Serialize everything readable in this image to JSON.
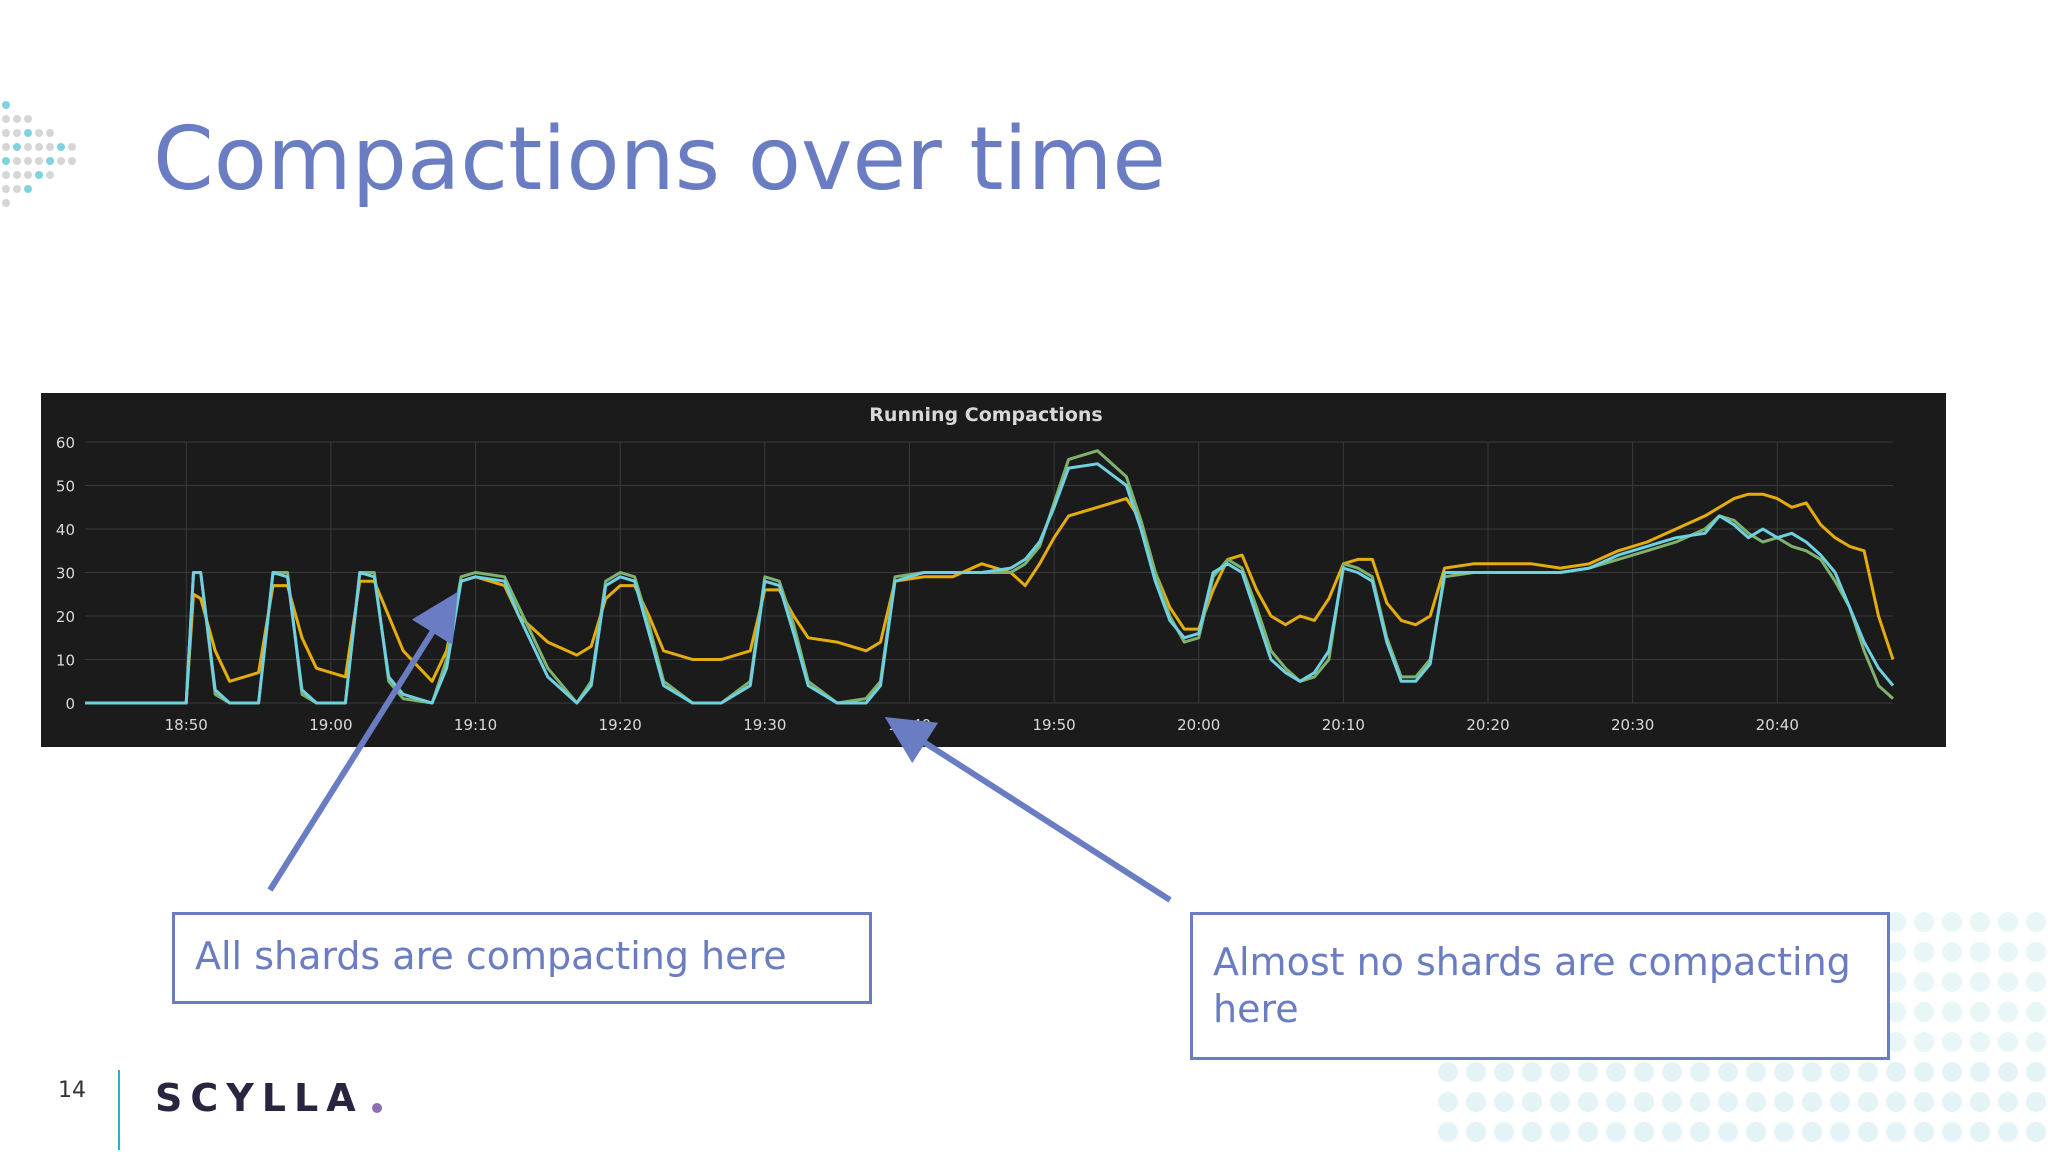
{
  "slide": {
    "title": "Compactions over time",
    "page_number": "14",
    "logo_text": "SCYLLA",
    "callouts": {
      "left": "All shards are compacting here",
      "right": "Almost no shards are compacting here"
    }
  },
  "colors": {
    "title": "#6b7dc2",
    "panel_bg": "#1b1b1c",
    "series_yellow": "#e5ac0e",
    "series_green": "#7eb26d",
    "series_cyan": "#6ed0e0",
    "accent_teal": "#2ab0c8"
  },
  "chart_data": {
    "type": "line",
    "title": "Running Compactions",
    "xlabel": "",
    "ylabel": "",
    "ylim": [
      0,
      60
    ],
    "yticks": [
      0,
      10,
      20,
      30,
      40,
      50,
      60
    ],
    "xticks": [
      "18:50",
      "19:00",
      "19:10",
      "19:20",
      "19:30",
      "19:40",
      "19:50",
      "20:00",
      "20:10",
      "20:20",
      "20:30",
      "20:40"
    ],
    "x_range": [
      "18:43",
      "20:48"
    ],
    "grid": true,
    "legend": "none",
    "series": [
      {
        "color": "#e5ac0e",
        "points": [
          [
            "18:43",
            0
          ],
          [
            "18:50",
            0
          ],
          [
            "18:50:30",
            25
          ],
          [
            "18:51",
            24
          ],
          [
            "18:52",
            12
          ],
          [
            "18:53",
            5
          ],
          [
            "18:55",
            7
          ],
          [
            "18:56",
            27
          ],
          [
            "18:57",
            27
          ],
          [
            "18:58",
            15
          ],
          [
            "18:59",
            8
          ],
          [
            "19:01",
            6
          ],
          [
            "19:02",
            28
          ],
          [
            "19:03",
            28
          ],
          [
            "19:04",
            20
          ],
          [
            "19:05",
            12
          ],
          [
            "19:07",
            5
          ],
          [
            "19:08",
            12
          ],
          [
            "19:09",
            28
          ],
          [
            "19:10",
            29
          ],
          [
            "19:12",
            27
          ],
          [
            "19:13",
            20
          ],
          [
            "19:15",
            14
          ],
          [
            "19:17",
            11
          ],
          [
            "19:18",
            13
          ],
          [
            "19:19",
            24
          ],
          [
            "19:20",
            27
          ],
          [
            "19:21",
            27
          ],
          [
            "19:22",
            20
          ],
          [
            "19:23",
            12
          ],
          [
            "19:25",
            10
          ],
          [
            "19:27",
            10
          ],
          [
            "19:29",
            12
          ],
          [
            "19:30",
            26
          ],
          [
            "19:31",
            26
          ],
          [
            "19:32",
            20
          ],
          [
            "19:33",
            15
          ],
          [
            "19:35",
            14
          ],
          [
            "19:37",
            12
          ],
          [
            "19:38",
            14
          ],
          [
            "19:39",
            28
          ],
          [
            "19:41",
            29
          ],
          [
            "19:43",
            29
          ],
          [
            "19:45",
            32
          ],
          [
            "19:47",
            30
          ],
          [
            "19:48",
            27
          ],
          [
            "19:49",
            32
          ],
          [
            "19:50",
            38
          ],
          [
            "19:51",
            43
          ],
          [
            "19:53",
            45
          ],
          [
            "19:55",
            47
          ],
          [
            "19:56",
            42
          ],
          [
            "19:57",
            30
          ],
          [
            "19:58",
            22
          ],
          [
            "19:59",
            17
          ],
          [
            "20:00",
            17
          ],
          [
            "20:01",
            26
          ],
          [
            "20:02",
            33
          ],
          [
            "20:03",
            34
          ],
          [
            "20:04",
            26
          ],
          [
            "20:05",
            20
          ],
          [
            "20:06",
            18
          ],
          [
            "20:07",
            20
          ],
          [
            "20:08",
            19
          ],
          [
            "20:09",
            24
          ],
          [
            "20:10",
            32
          ],
          [
            "20:11",
            33
          ],
          [
            "20:12",
            33
          ],
          [
            "20:13",
            23
          ],
          [
            "20:14",
            19
          ],
          [
            "20:15",
            18
          ],
          [
            "20:16",
            20
          ],
          [
            "20:17",
            31
          ],
          [
            "20:19",
            32
          ],
          [
            "20:21",
            32
          ],
          [
            "20:23",
            32
          ],
          [
            "20:25",
            31
          ],
          [
            "20:27",
            32
          ],
          [
            "20:29",
            35
          ],
          [
            "20:31",
            37
          ],
          [
            "20:33",
            40
          ],
          [
            "20:35",
            43
          ],
          [
            "20:36",
            45
          ],
          [
            "20:37",
            47
          ],
          [
            "20:38",
            48
          ],
          [
            "20:39",
            48
          ],
          [
            "20:40",
            47
          ],
          [
            "20:41",
            45
          ],
          [
            "20:42",
            46
          ],
          [
            "20:43",
            41
          ],
          [
            "20:44",
            38
          ],
          [
            "20:45",
            36
          ],
          [
            "20:46",
            35
          ],
          [
            "20:47",
            20
          ],
          [
            "20:48",
            10
          ]
        ]
      },
      {
        "color": "#7eb26d",
        "points": [
          [
            "18:43",
            0
          ],
          [
            "18:50",
            0
          ],
          [
            "18:50:30",
            30
          ],
          [
            "18:51",
            30
          ],
          [
            "18:52",
            2
          ],
          [
            "18:53",
            0
          ],
          [
            "18:55",
            0
          ],
          [
            "18:56",
            30
          ],
          [
            "18:57",
            30
          ],
          [
            "18:58",
            2
          ],
          [
            "18:59",
            0
          ],
          [
            "19:01",
            0
          ],
          [
            "19:02",
            30
          ],
          [
            "19:03",
            30
          ],
          [
            "19:04",
            5
          ],
          [
            "19:05",
            1
          ],
          [
            "19:07",
            0
          ],
          [
            "19:08",
            10
          ],
          [
            "19:09",
            29
          ],
          [
            "19:10",
            30
          ],
          [
            "19:12",
            29
          ],
          [
            "19:13",
            22
          ],
          [
            "19:15",
            8
          ],
          [
            "19:17",
            0
          ],
          [
            "19:18",
            5
          ],
          [
            "19:19",
            28
          ],
          [
            "19:20",
            30
          ],
          [
            "19:21",
            29
          ],
          [
            "19:22",
            18
          ],
          [
            "19:23",
            5
          ],
          [
            "19:25",
            0
          ],
          [
            "19:27",
            0
          ],
          [
            "19:29",
            5
          ],
          [
            "19:30",
            29
          ],
          [
            "19:31",
            28
          ],
          [
            "19:32",
            18
          ],
          [
            "19:33",
            5
          ],
          [
            "19:35",
            0
          ],
          [
            "19:37",
            1
          ],
          [
            "19:38",
            5
          ],
          [
            "19:39",
            29
          ],
          [
            "19:41",
            30
          ],
          [
            "19:43",
            30
          ],
          [
            "19:45",
            30
          ],
          [
            "19:47",
            30
          ],
          [
            "19:48",
            32
          ],
          [
            "19:49",
            36
          ],
          [
            "19:50",
            46
          ],
          [
            "19:51",
            56
          ],
          [
            "19:53",
            58
          ],
          [
            "19:55",
            52
          ],
          [
            "19:56",
            42
          ],
          [
            "19:57",
            30
          ],
          [
            "19:58",
            20
          ],
          [
            "19:59",
            14
          ],
          [
            "20:00",
            15
          ],
          [
            "20:01",
            29
          ],
          [
            "20:02",
            33
          ],
          [
            "20:03",
            31
          ],
          [
            "20:04",
            22
          ],
          [
            "20:05",
            12
          ],
          [
            "20:06",
            8
          ],
          [
            "20:07",
            5
          ],
          [
            "20:08",
            6
          ],
          [
            "20:09",
            10
          ],
          [
            "20:10",
            32
          ],
          [
            "20:11",
            31
          ],
          [
            "20:12",
            29
          ],
          [
            "20:13",
            15
          ],
          [
            "20:14",
            6
          ],
          [
            "20:15",
            6
          ],
          [
            "20:16",
            10
          ],
          [
            "20:17",
            29
          ],
          [
            "20:19",
            30
          ],
          [
            "20:21",
            30
          ],
          [
            "20:23",
            30
          ],
          [
            "20:25",
            30
          ],
          [
            "20:27",
            31
          ],
          [
            "20:29",
            33
          ],
          [
            "20:31",
            35
          ],
          [
            "20:33",
            37
          ],
          [
            "20:35",
            40
          ],
          [
            "20:36",
            43
          ],
          [
            "20:37",
            42
          ],
          [
            "20:38",
            39
          ],
          [
            "20:39",
            37
          ],
          [
            "20:40",
            38
          ],
          [
            "20:41",
            36
          ],
          [
            "20:42",
            35
          ],
          [
            "20:43",
            33
          ],
          [
            "20:44",
            28
          ],
          [
            "20:45",
            22
          ],
          [
            "20:46",
            12
          ],
          [
            "20:47",
            4
          ],
          [
            "20:48",
            1
          ]
        ]
      },
      {
        "color": "#6ed0e0",
        "points": [
          [
            "18:43",
            0
          ],
          [
            "18:50",
            0
          ],
          [
            "18:50:30",
            30
          ],
          [
            "18:51",
            30
          ],
          [
            "18:52",
            3
          ],
          [
            "18:53",
            0
          ],
          [
            "18:55",
            0
          ],
          [
            "18:56",
            30
          ],
          [
            "18:57",
            29
          ],
          [
            "18:58",
            3
          ],
          [
            "18:59",
            0
          ],
          [
            "19:01",
            0
          ],
          [
            "19:02",
            30
          ],
          [
            "19:03",
            29
          ],
          [
            "19:04",
            6
          ],
          [
            "19:05",
            2
          ],
          [
            "19:07",
            0
          ],
          [
            "19:08",
            8
          ],
          [
            "19:09",
            28
          ],
          [
            "19:10",
            29
          ],
          [
            "19:12",
            28
          ],
          [
            "19:13",
            20
          ],
          [
            "19:15",
            6
          ],
          [
            "19:17",
            0
          ],
          [
            "19:18",
            4
          ],
          [
            "19:19",
            27
          ],
          [
            "19:20",
            29
          ],
          [
            "19:21",
            28
          ],
          [
            "19:22",
            16
          ],
          [
            "19:23",
            4
          ],
          [
            "19:25",
            0
          ],
          [
            "19:27",
            0
          ],
          [
            "19:29",
            4
          ],
          [
            "19:30",
            28
          ],
          [
            "19:31",
            27
          ],
          [
            "19:32",
            16
          ],
          [
            "19:33",
            4
          ],
          [
            "19:35",
            0
          ],
          [
            "19:37",
            0
          ],
          [
            "19:38",
            4
          ],
          [
            "19:39",
            28
          ],
          [
            "19:41",
            30
          ],
          [
            "19:43",
            30
          ],
          [
            "19:45",
            30
          ],
          [
            "19:47",
            31
          ],
          [
            "19:48",
            33
          ],
          [
            "19:49",
            37
          ],
          [
            "19:50",
            45
          ],
          [
            "19:51",
            54
          ],
          [
            "19:53",
            55
          ],
          [
            "19:55",
            50
          ],
          [
            "19:56",
            40
          ],
          [
            "19:57",
            28
          ],
          [
            "19:58",
            19
          ],
          [
            "19:59",
            15
          ],
          [
            "20:00",
            16
          ],
          [
            "20:01",
            30
          ],
          [
            "20:02",
            32
          ],
          [
            "20:03",
            30
          ],
          [
            "20:04",
            20
          ],
          [
            "20:05",
            10
          ],
          [
            "20:06",
            7
          ],
          [
            "20:07",
            5
          ],
          [
            "20:08",
            7
          ],
          [
            "20:09",
            12
          ],
          [
            "20:10",
            31
          ],
          [
            "20:11",
            30
          ],
          [
            "20:12",
            28
          ],
          [
            "20:13",
            14
          ],
          [
            "20:14",
            5
          ],
          [
            "20:15",
            5
          ],
          [
            "20:16",
            9
          ],
          [
            "20:17",
            30
          ],
          [
            "20:19",
            30
          ],
          [
            "20:21",
            30
          ],
          [
            "20:23",
            30
          ],
          [
            "20:25",
            30
          ],
          [
            "20:27",
            31
          ],
          [
            "20:29",
            34
          ],
          [
            "20:31",
            36
          ],
          [
            "20:33",
            38
          ],
          [
            "20:35",
            39
          ],
          [
            "20:36",
            43
          ],
          [
            "20:37",
            41
          ],
          [
            "20:38",
            38
          ],
          [
            "20:39",
            40
          ],
          [
            "20:40",
            38
          ],
          [
            "20:41",
            39
          ],
          [
            "20:42",
            37
          ],
          [
            "20:43",
            34
          ],
          [
            "20:44",
            30
          ],
          [
            "20:45",
            22
          ],
          [
            "20:46",
            14
          ],
          [
            "20:47",
            8
          ],
          [
            "20:48",
            4
          ]
        ]
      }
    ]
  }
}
